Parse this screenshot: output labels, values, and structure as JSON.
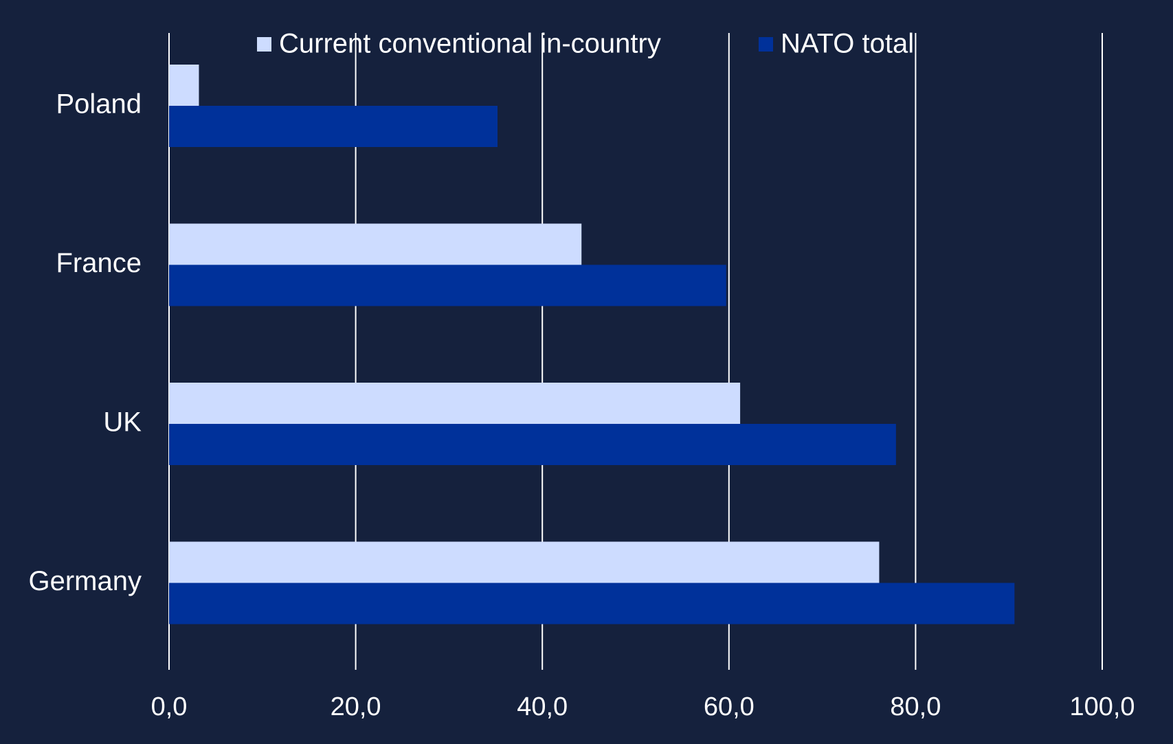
{
  "colors": {
    "background": "#15213d",
    "gridline": "#ffffff",
    "text": "#ffffff",
    "series_current": "#cddcff",
    "series_nato": "#00319a"
  },
  "chart_data": {
    "type": "bar",
    "orientation": "horizontal",
    "categories": [
      "Poland",
      "France",
      "UK",
      "Germany"
    ],
    "series": [
      {
        "name": "Current conventional in-country",
        "color": "#cddcff",
        "values": [
          3.2,
          44.2,
          61.2,
          76.1
        ]
      },
      {
        "name": "NATO total",
        "color": "#00319a",
        "values": [
          35.2,
          59.7,
          77.9,
          90.6
        ]
      }
    ],
    "x_ticks": [
      "0,0",
      "20,0",
      "40,0",
      "60,0",
      "80,0",
      "100,0"
    ],
    "xlim": [
      0,
      100
    ],
    "grid": true,
    "legend_position": "top"
  }
}
